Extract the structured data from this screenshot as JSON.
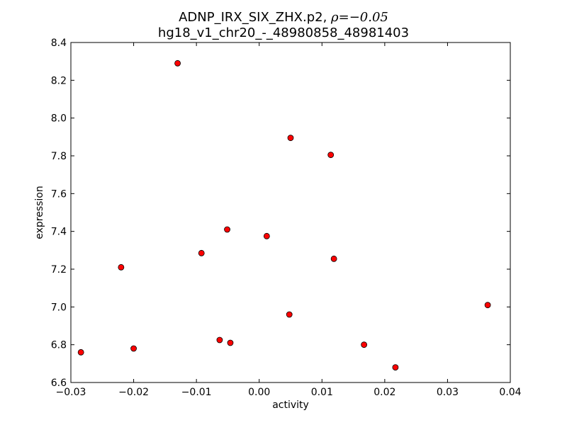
{
  "chart_data": {
    "type": "scatter",
    "title_line1": "ADNP_IRX_SIX_ZHX.p2, ",
    "title_rho_symbol": "ρ",
    "title_rho_value": "=−0.05",
    "title_line2": "hg18_v1_chr20_-_48980858_48981403",
    "xlabel": "activity",
    "ylabel": "expression",
    "xlim": [
      -0.03,
      0.04
    ],
    "ylim": [
      6.6,
      8.4
    ],
    "xticks": [
      -0.03,
      -0.02,
      -0.01,
      0.0,
      0.01,
      0.02,
      0.03,
      0.04
    ],
    "xtick_labels": [
      "−0.03",
      "−0.02",
      "−0.01",
      "0.00",
      "0.01",
      "0.02",
      "0.03",
      "0.04"
    ],
    "yticks": [
      6.6,
      6.8,
      7.0,
      7.2,
      7.4,
      7.6,
      7.8,
      8.0,
      8.2,
      8.4
    ],
    "ytick_labels": [
      "6.6",
      "6.8",
      "7.0",
      "7.2",
      "7.4",
      "7.6",
      "7.8",
      "8.0",
      "8.2",
      "8.4"
    ],
    "grid": false,
    "marker_color": "#ff0000",
    "marker_edge_color": "#000000",
    "points": [
      {
        "x": -0.0284,
        "y": 6.76
      },
      {
        "x": -0.022,
        "y": 7.21
      },
      {
        "x": -0.02,
        "y": 6.78
      },
      {
        "x": -0.013,
        "y": 8.29
      },
      {
        "x": -0.0092,
        "y": 7.285
      },
      {
        "x": -0.0063,
        "y": 6.825
      },
      {
        "x": -0.0051,
        "y": 7.41
      },
      {
        "x": -0.0046,
        "y": 6.81
      },
      {
        "x": 0.0012,
        "y": 7.375
      },
      {
        "x": 0.0048,
        "y": 6.96
      },
      {
        "x": 0.005,
        "y": 7.895
      },
      {
        "x": 0.0114,
        "y": 7.805
      },
      {
        "x": 0.0119,
        "y": 7.255
      },
      {
        "x": 0.0167,
        "y": 6.8
      },
      {
        "x": 0.0217,
        "y": 6.68
      },
      {
        "x": 0.0364,
        "y": 7.01
      }
    ]
  }
}
